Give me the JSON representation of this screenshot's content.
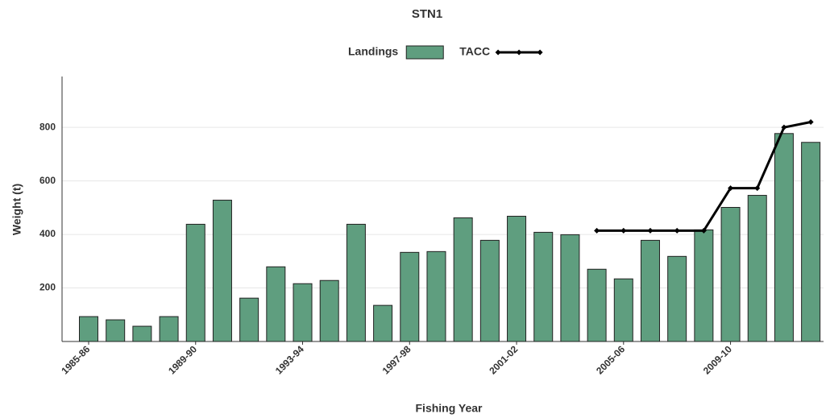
{
  "chart_data": {
    "type": "bar",
    "title": "STN1",
    "x_label": "Fishing Year",
    "y_label": "Weight (t)",
    "categories": [
      "1985-86",
      null,
      null,
      null,
      "1989-90",
      null,
      null,
      null,
      "1993-94",
      null,
      null,
      null,
      "1997-98",
      null,
      null,
      null,
      "2001-02",
      null,
      null,
      null,
      "2005-06",
      null,
      null,
      null,
      "2009-10",
      null,
      null,
      null
    ],
    "series": [
      {
        "name": "Landings",
        "type": "bar",
        "color": "#5f9e7f",
        "values": [
          93,
          81,
          57,
          93,
          438,
          528,
          162,
          279,
          216,
          228,
          438,
          135,
          333,
          336,
          462,
          378,
          468,
          408,
          399,
          270,
          234,
          378,
          318,
          417,
          501,
          546,
          777,
          744
        ]
      },
      {
        "name": "TACC",
        "type": "line",
        "color": "#000000",
        "values": [
          null,
          null,
          null,
          null,
          null,
          null,
          null,
          null,
          null,
          null,
          null,
          null,
          null,
          null,
          null,
          null,
          null,
          null,
          null,
          414,
          414,
          414,
          414,
          414,
          573,
          573,
          800,
          820
        ]
      }
    ],
    "ylim": [
      0,
      990
    ],
    "yticks": [
      200,
      400,
      600,
      800
    ],
    "grid": true,
    "legend": "top"
  }
}
